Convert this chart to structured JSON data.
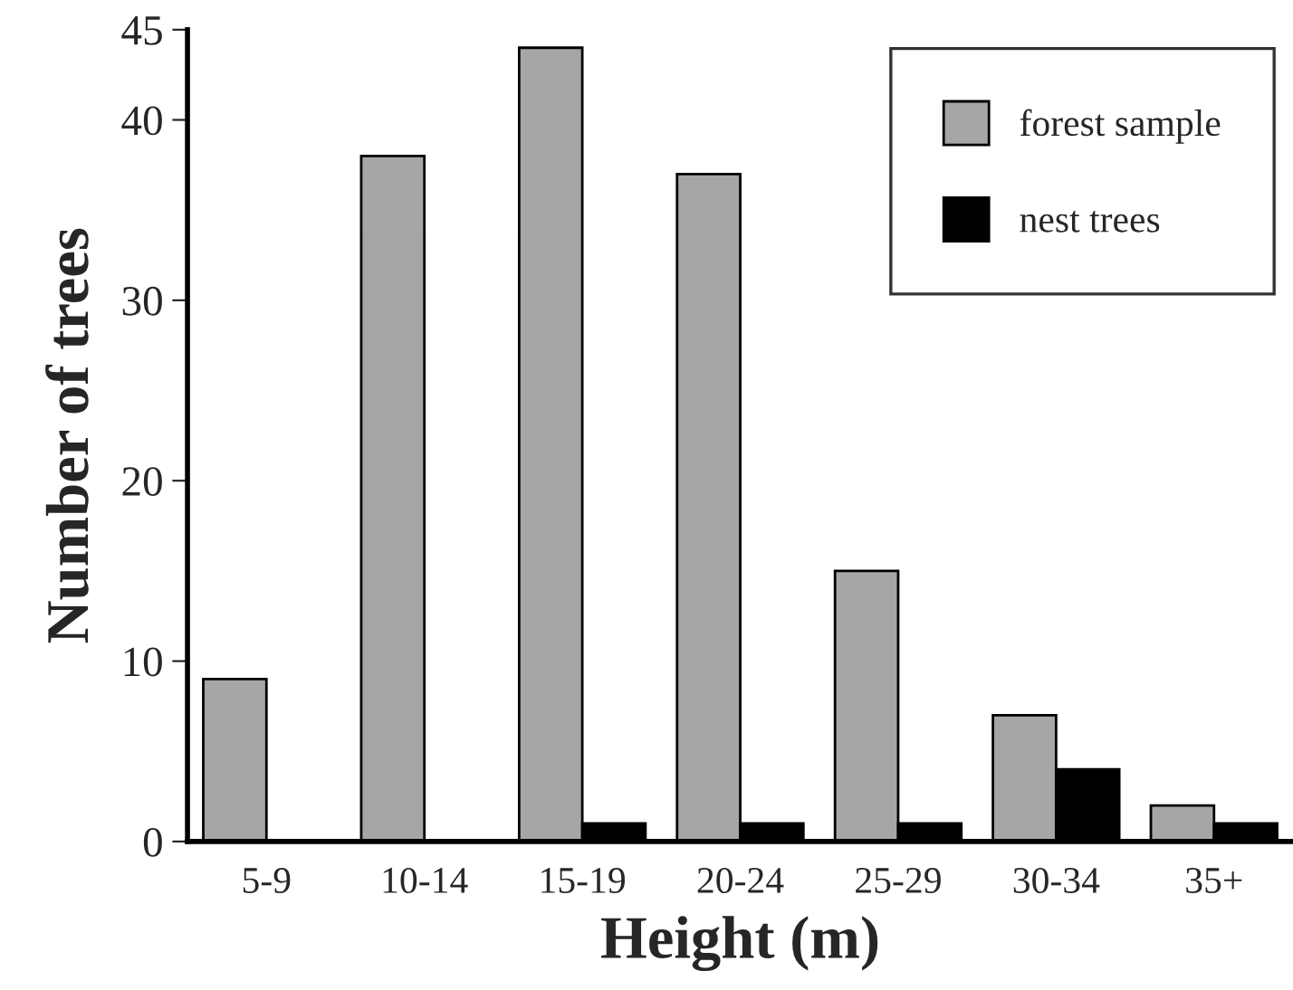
{
  "chart_data": {
    "type": "bar",
    "xlabel": "Height (m)",
    "ylabel": "Number of trees",
    "categories": [
      "5-9",
      "10-14",
      "15-19",
      "20-24",
      "25-29",
      "30-34",
      "35+"
    ],
    "series": [
      {
        "name": "forest sample",
        "color": "#a6a6a6",
        "values": [
          9,
          38,
          44,
          37,
          15,
          7,
          2
        ]
      },
      {
        "name": "nest trees",
        "color": "#000000",
        "values": [
          0,
          0,
          1,
          1,
          1,
          4,
          1
        ]
      }
    ],
    "ylim": [
      0,
      45
    ],
    "yticks": [
      0,
      10,
      20,
      30,
      40,
      45
    ],
    "grid": false,
    "legend": "top right"
  }
}
